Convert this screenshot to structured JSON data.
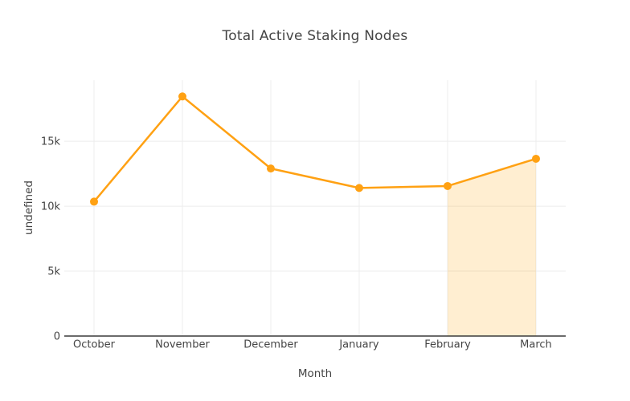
{
  "chart_data": {
    "type": "line",
    "title": "Total Active Staking Nodes",
    "xlabel": "Month",
    "ylabel": "undefined",
    "categories": [
      "October",
      "November",
      "December",
      "January",
      "February",
      "March"
    ],
    "series": [
      {
        "name": "Total Active Staking Nodes",
        "values": [
          10350,
          18450,
          12900,
          11400,
          11550,
          13650
        ]
      }
    ],
    "ylim": [
      0,
      19700
    ],
    "yticks": [
      {
        "value": 0,
        "label": "0"
      },
      {
        "value": 5000,
        "label": "5k"
      },
      {
        "value": 10000,
        "label": "10k"
      },
      {
        "value": 15000,
        "label": "15k"
      }
    ],
    "grid": true,
    "legend": false,
    "line_color": "#ffa113",
    "marker_color": "#ffa113",
    "grid_color": "#ececec",
    "axis_line_color": "#3a3a3a",
    "text_color": "#444444",
    "background_color": "#ffffff",
    "highlight_region": {
      "from_category": "February",
      "to_category": "March",
      "fill": "rgba(255, 161, 0, 0.18)"
    }
  }
}
